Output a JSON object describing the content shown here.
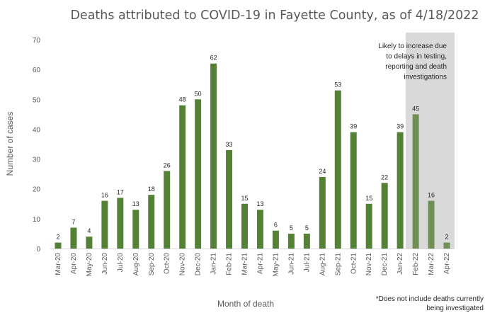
{
  "chart_data": {
    "type": "bar",
    "title": "Deaths attributed to COVID-19 in Fayette County, as of 4/18/2022",
    "xlabel": "Month of death",
    "ylabel": "Number of cases",
    "ylim": [
      0,
      70
    ],
    "yticks": [
      0,
      10,
      20,
      30,
      40,
      50,
      60,
      70
    ],
    "categories": [
      "Mar-20",
      "Apr-20",
      "May-20",
      "Jun-20",
      "Jul-20",
      "Aug-20",
      "Sep-20",
      "Oct-20",
      "Nov-20",
      "Dec-20",
      "Jan-21",
      "Feb-21",
      "Mar-21",
      "Apr-21",
      "May-21",
      "Jun-21",
      "Jul-21",
      "Aug-21",
      "Sep-21",
      "Oct-21",
      "Nov-21",
      "Dec-21",
      "Jan-22",
      "Feb-22",
      "Mar-22",
      "Apr-22"
    ],
    "values": [
      2,
      7,
      4,
      16,
      17,
      13,
      18,
      26,
      48,
      50,
      62,
      33,
      15,
      13,
      6,
      5,
      5,
      24,
      53,
      39,
      15,
      22,
      39,
      45,
      16,
      2
    ],
    "bar_color": "#548235",
    "highlight_bar_color": "#6f8f55",
    "shaded_region": {
      "categories": [
        "Feb-22",
        "Mar-22",
        "Apr-22"
      ],
      "color": "#d9d9d9",
      "annotation": [
        "Likely to increase due",
        "to delays in testing,",
        "reporting and death",
        "investigations"
      ]
    },
    "grid": false,
    "legend": "none"
  },
  "footnote": [
    "*Does not include deaths currently",
    "being investigated"
  ]
}
